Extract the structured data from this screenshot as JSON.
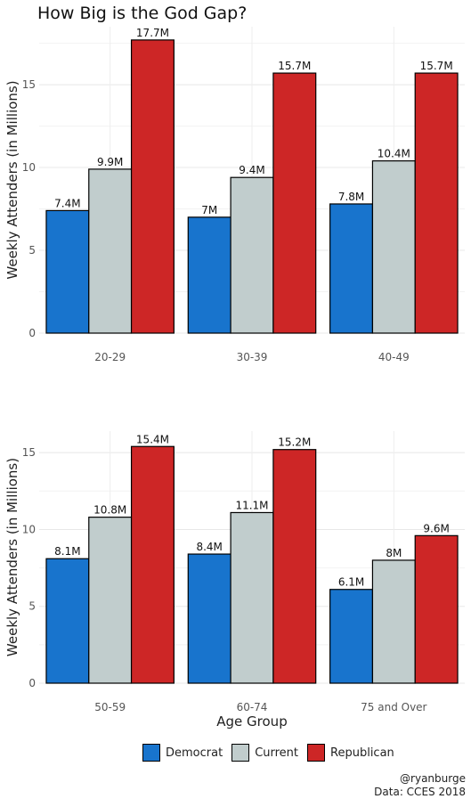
{
  "title": "How Big is the God Gap?",
  "caption": {
    "line1": "@ryanburge",
    "line2": "Data: CCES 2018"
  },
  "legend": [
    {
      "label": "Democrat",
      "color": "#1874cd"
    },
    {
      "label": "Current",
      "color": "#c1cdcd"
    },
    {
      "label": "Republican",
      "color": "#cd2626"
    }
  ],
  "chart_data": [
    {
      "type": "bar",
      "categories": [
        "20-29",
        "30-39",
        "40-49"
      ],
      "series": [
        {
          "name": "Democrat",
          "values": [
            7.4,
            7.0,
            7.8
          ],
          "labels": [
            "7.4M",
            "7M",
            "7.8M"
          ]
        },
        {
          "name": "Current",
          "values": [
            9.9,
            9.4,
            10.4
          ],
          "labels": [
            "9.9M",
            "9.4M",
            "10.4M"
          ]
        },
        {
          "name": "Republican",
          "values": [
            17.7,
            15.7,
            15.7
          ],
          "labels": [
            "17.7M",
            "15.7M",
            "15.7M"
          ]
        }
      ],
      "ylabel": "Weekly Attenders (in Millions)",
      "xlabel": "",
      "ylim": [
        0,
        18.5
      ],
      "yticks": [
        0,
        5,
        10,
        15
      ]
    },
    {
      "type": "bar",
      "categories": [
        "50-59",
        "60-74",
        "75 and Over"
      ],
      "series": [
        {
          "name": "Democrat",
          "values": [
            8.1,
            8.4,
            6.1
          ],
          "labels": [
            "8.1M",
            "8.4M",
            "6.1M"
          ]
        },
        {
          "name": "Current",
          "values": [
            10.8,
            11.1,
            8.0
          ],
          "labels": [
            "10.8M",
            "11.1M",
            "8M"
          ]
        },
        {
          "name": "Republican",
          "values": [
            15.4,
            15.2,
            9.6
          ],
          "labels": [
            "15.4M",
            "15.2M",
            "9.6M"
          ]
        }
      ],
      "ylabel": "Weekly Attenders (in Millions)",
      "xlabel": "Age Group",
      "ylim": [
        0,
        16.4
      ],
      "yticks": [
        0,
        5,
        10,
        15
      ]
    }
  ]
}
